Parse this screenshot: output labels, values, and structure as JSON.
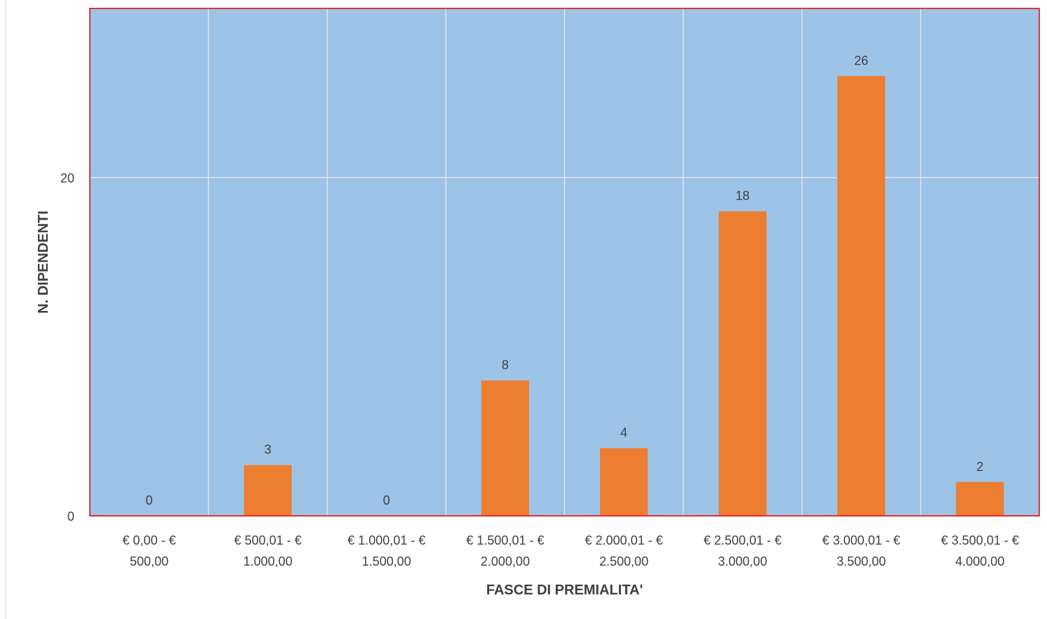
{
  "chart_data": {
    "type": "bar",
    "title": "",
    "xlabel": "FASCE DI PREMIALITA'",
    "ylabel": "N. DIPENDENTI",
    "categories": [
      [
        "€ 0,00 - €",
        "500,00"
      ],
      [
        "€ 500,01 - €",
        "1.000,00"
      ],
      [
        "€ 1.000,01 - €",
        "1.500,00"
      ],
      [
        "€ 1.500,01 - €",
        "2.000,00"
      ],
      [
        "€ 2.000,01 - €",
        "2.500,00"
      ],
      [
        "€ 2.500,01 - €",
        "3.000,00"
      ],
      [
        "€ 3.000,01 - €",
        "3.500,00"
      ],
      [
        "€ 3.500,01 - €",
        "4.000,00"
      ]
    ],
    "values": [
      0,
      3,
      0,
      8,
      4,
      18,
      26,
      2
    ],
    "ylim": [
      0,
      30
    ],
    "yticks": [
      0,
      20
    ],
    "grid": true,
    "legend": "none",
    "colors": {
      "plot_background": "#9dc3e6",
      "bar": "#ed7d31",
      "plot_border": "#e00000",
      "gridline": "#d9e6f2",
      "text": "#404040"
    }
  }
}
